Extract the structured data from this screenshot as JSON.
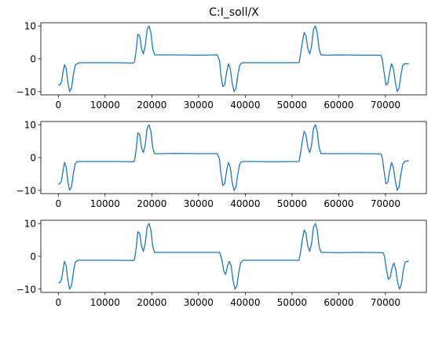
{
  "figure": {
    "title": "C:I_soll/X",
    "line_color": "#1f77b4"
  },
  "chart_data": [
    {
      "type": "line",
      "title": "C:I_soll/X",
      "xlabel": "",
      "ylabel": "",
      "grid": false,
      "xlim": [
        -3750,
        78750
      ],
      "ylim": [
        -11,
        11
      ],
      "xticks": [
        0,
        10000,
        20000,
        30000,
        40000,
        50000,
        60000,
        70000
      ],
      "xtick_labels": [
        "0",
        "10000",
        "20000",
        "30000",
        "40000",
        "50000",
        "60000",
        "70000"
      ],
      "yticks": [
        -10,
        0,
        10
      ],
      "ytick_labels": [
        "−10",
        "0",
        "10"
      ],
      "series": [
        {
          "x": [
            0,
            300,
            700,
            1000,
            1300,
            1700,
            2000,
            2400,
            2800,
            3200,
            3600,
            4000,
            4500,
            5000,
            8000,
            12000,
            16000,
            16300,
            16700,
            17000,
            17400,
            17800,
            18200,
            18600,
            19000,
            19400,
            19800,
            20200,
            20600,
            21000,
            21500,
            22000,
            25000,
            30000,
            34000,
            34500,
            34800,
            35200,
            35600,
            36000,
            36400,
            36800,
            37200,
            37600,
            38000,
            38400,
            38800,
            39200,
            39700,
            42000,
            46000,
            51500,
            51800,
            52200,
            52600,
            53000,
            53400,
            53800,
            54200,
            54600,
            55000,
            55400,
            55800,
            56200,
            56600,
            57000,
            60000,
            65000,
            69000,
            69300,
            69700,
            70100,
            70500,
            70900,
            71300,
            71700,
            72100,
            72500,
            72900,
            73300,
            73700,
            74100,
            74600,
            75000
          ],
          "y": [
            -8,
            -8,
            -7,
            -4,
            -1.8,
            -3,
            -7,
            -10,
            -9,
            -5,
            -2,
            -1.5,
            -1.2,
            -1.2,
            -1.2,
            -1.2,
            -1.3,
            -1,
            3,
            7.5,
            7,
            3,
            1.5,
            4,
            9,
            10,
            8,
            3,
            1.2,
            1.2,
            1.2,
            1.2,
            1.2,
            1.1,
            1.2,
            -0.5,
            -5,
            -8.5,
            -8,
            -4,
            -1.5,
            -3,
            -7.5,
            -10,
            -9,
            -5,
            -2,
            -1.3,
            -1.2,
            -1.2,
            -1.2,
            -1.2,
            1,
            5,
            8,
            7,
            3,
            1.5,
            4,
            9,
            10,
            8,
            3,
            1.2,
            1.2,
            1.1,
            1.2,
            1.1,
            1.1,
            0,
            -4,
            -8,
            -7.5,
            -4,
            -1.5,
            -3,
            -7,
            -10,
            -9,
            -5,
            -2,
            -1.5,
            -1.5,
            -1.5
          ]
        }
      ]
    },
    {
      "type": "line",
      "xlabel": "",
      "ylabel": "",
      "grid": false,
      "xlim": [
        -3750,
        78750
      ],
      "ylim": [
        -11,
        11
      ],
      "xticks": [
        0,
        10000,
        20000,
        30000,
        40000,
        50000,
        60000,
        70000
      ],
      "xtick_labels": [
        "0",
        "10000",
        "20000",
        "30000",
        "40000",
        "50000",
        "60000",
        "70000"
      ],
      "yticks": [
        -10,
        0,
        10
      ],
      "ytick_labels": [
        "−10",
        "0",
        "10"
      ],
      "series": [
        {
          "x": [
            0,
            300,
            700,
            1000,
            1300,
            1700,
            2000,
            2400,
            2800,
            3200,
            3600,
            4000,
            4500,
            5000,
            8000,
            12000,
            16000,
            16300,
            16700,
            17000,
            17400,
            17800,
            18200,
            18600,
            19000,
            19400,
            19800,
            20200,
            20600,
            21000,
            21500,
            22000,
            25000,
            30000,
            34000,
            34500,
            34800,
            35200,
            35600,
            36000,
            36400,
            36800,
            37200,
            37600,
            38000,
            38400,
            38800,
            39200,
            39700,
            42000,
            46000,
            51500,
            51800,
            52200,
            52600,
            53000,
            53400,
            53800,
            54200,
            54600,
            55000,
            55400,
            55800,
            56200,
            56600,
            57000,
            60000,
            65000,
            69000,
            69300,
            69700,
            70100,
            70500,
            70900,
            71300,
            71700,
            72100,
            72500,
            72900,
            73300,
            73700,
            74100,
            74600,
            75000
          ],
          "y": [
            -8,
            -8,
            -7,
            -4,
            -1.5,
            -3,
            -7,
            -10,
            -9,
            -5,
            -2,
            -1.3,
            -1.2,
            -1.2,
            -1.2,
            -1.2,
            -1.3,
            -1,
            3,
            7.5,
            7,
            3,
            1.5,
            4,
            9,
            10,
            8,
            3,
            1.2,
            1.2,
            1.2,
            1.2,
            1.3,
            1.2,
            1.2,
            -0.5,
            -5,
            -8.5,
            -8,
            -4,
            -1.5,
            -3,
            -7.5,
            -10,
            -9,
            -5,
            -2,
            -1.3,
            -1.2,
            -1.2,
            -1.3,
            -1.2,
            1,
            5,
            8,
            7,
            3,
            1.5,
            4,
            9,
            10,
            8,
            3,
            1.2,
            1.2,
            1.2,
            1.2,
            1.2,
            1.1,
            0,
            -4,
            -8,
            -7.5,
            -4,
            -1.5,
            -3,
            -7,
            -10,
            -9,
            -5,
            -2,
            -1.2,
            -1,
            -1
          ]
        }
      ]
    },
    {
      "type": "line",
      "xlabel": "",
      "ylabel": "",
      "grid": false,
      "xlim": [
        -3750,
        78750
      ],
      "ylim": [
        -11,
        11
      ],
      "xticks": [
        0,
        10000,
        20000,
        30000,
        40000,
        50000,
        60000,
        70000
      ],
      "xtick_labels": [
        "0",
        "10000",
        "20000",
        "30000",
        "40000",
        "50000",
        "60000",
        "70000"
      ],
      "yticks": [
        -10,
        0,
        10
      ],
      "ytick_labels": [
        "−10",
        "0",
        "10"
      ],
      "series": [
        {
          "x": [
            0,
            300,
            700,
            1000,
            1300,
            1700,
            2000,
            2400,
            2800,
            3200,
            3600,
            4000,
            4500,
            5000,
            8000,
            12000,
            16000,
            16300,
            16700,
            17000,
            17400,
            17800,
            18200,
            18600,
            19000,
            19400,
            19800,
            20200,
            20600,
            21000,
            21500,
            22000,
            25000,
            30000,
            34500,
            35000,
            35400,
            35800,
            36200,
            36600,
            37000,
            37400,
            37800,
            38200,
            38600,
            39000,
            39500,
            42000,
            46000,
            51500,
            51800,
            52200,
            52600,
            53000,
            53400,
            53800,
            54200,
            54600,
            55000,
            55400,
            55800,
            56200,
            56600,
            57000,
            60000,
            65000,
            69500,
            69800,
            70200,
            70600,
            71000,
            71400,
            71800,
            72200,
            72600,
            73000,
            73400,
            73800,
            74200,
            74600,
            75000
          ],
          "y": [
            -8,
            -8,
            -7,
            -4,
            -1.5,
            -3,
            -7,
            -10,
            -9,
            -5,
            -2,
            -1.3,
            -1.2,
            -1.2,
            -1.2,
            -1.2,
            -1.3,
            -1,
            3,
            7.5,
            7,
            3,
            1.5,
            4,
            9,
            10,
            8,
            3,
            1.2,
            1.2,
            1.2,
            1.2,
            1.2,
            1.2,
            1.2,
            -1,
            -4.5,
            -5.5,
            -3,
            -1.5,
            -3,
            -7.5,
            -10,
            -9,
            -5,
            -2,
            -1.2,
            -1.2,
            -1.2,
            -1.2,
            1,
            5,
            8,
            7,
            3,
            1.5,
            4,
            9,
            10,
            8,
            3,
            1.2,
            1.2,
            1.2,
            1.1,
            1.2,
            1.1,
            0,
            -4,
            -7,
            -6.5,
            -3.5,
            -2,
            -4,
            -8,
            -10,
            -8.5,
            -4.5,
            -1.8,
            -1.5,
            -1.5
          ]
        }
      ]
    }
  ]
}
